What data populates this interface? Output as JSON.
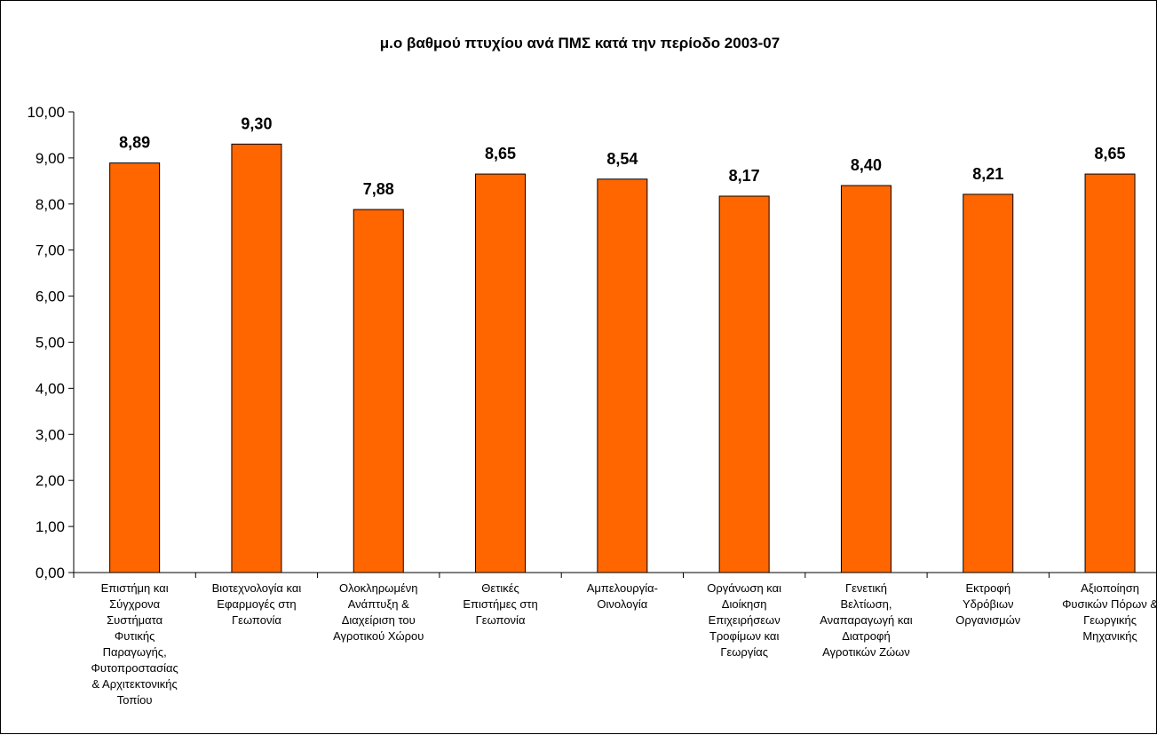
{
  "chart_data": {
    "type": "bar",
    "title": "μ.ο βαθμού πτυχίου ανά ΠΜΣ κατά την περίοδο 2003-07",
    "xlabel": "",
    "ylabel": "",
    "ylim": [
      0,
      10
    ],
    "ytick_step": 1,
    "y_tick_labels": [
      "0,00",
      "1,00",
      "2,00",
      "3,00",
      "4,00",
      "5,00",
      "6,00",
      "7,00",
      "8,00",
      "9,00",
      "10,00"
    ],
    "grid": false,
    "legend": "none",
    "bar_color": "#FF6600",
    "categories": [
      [
        "Επιστήμη και",
        "Σύγχρονα",
        "Συστήματα",
        "Φυτικής",
        "Παραγωγής,",
        "Φυτοπροστασίας",
        "& Αρχιτεκτονικής",
        "Τοπίου"
      ],
      [
        "Βιοτεχνολογία και",
        "Εφαρμογές στη",
        "Γεωπονία"
      ],
      [
        "Ολοκληρωμένη",
        "Ανάπτυξη &",
        "Διαχείριση του",
        "Αγροτικού Χώρου"
      ],
      [
        "Θετικές",
        "Επιστήμες στη",
        "Γεωπονία"
      ],
      [
        "Αμπελουργία-",
        "Οινολογία"
      ],
      [
        "Οργάνωση και",
        "Διοίκηση",
        "Επιχειρήσεων",
        "Τροφίμων και",
        "Γεωργίας"
      ],
      [
        "Γενετική",
        "Βελτίωση,",
        "Αναπαραγωγή και",
        "Διατροφή",
        "Αγροτικών Ζώων"
      ],
      [
        "Εκτροφή",
        "Υδρόβιων",
        "Οργανισμών"
      ],
      [
        "Αξιοποίηση",
        "Φυσικών Πόρων &",
        "Γεωργικής",
        "Μηχανικής"
      ]
    ],
    "values": [
      8.89,
      9.3,
      7.88,
      8.65,
      8.54,
      8.17,
      8.4,
      8.21,
      8.65
    ],
    "data_labels": [
      "8,89",
      "9,30",
      "7,88",
      "8,65",
      "8,54",
      "8,17",
      "8,40",
      "8,21",
      "8,65"
    ]
  }
}
